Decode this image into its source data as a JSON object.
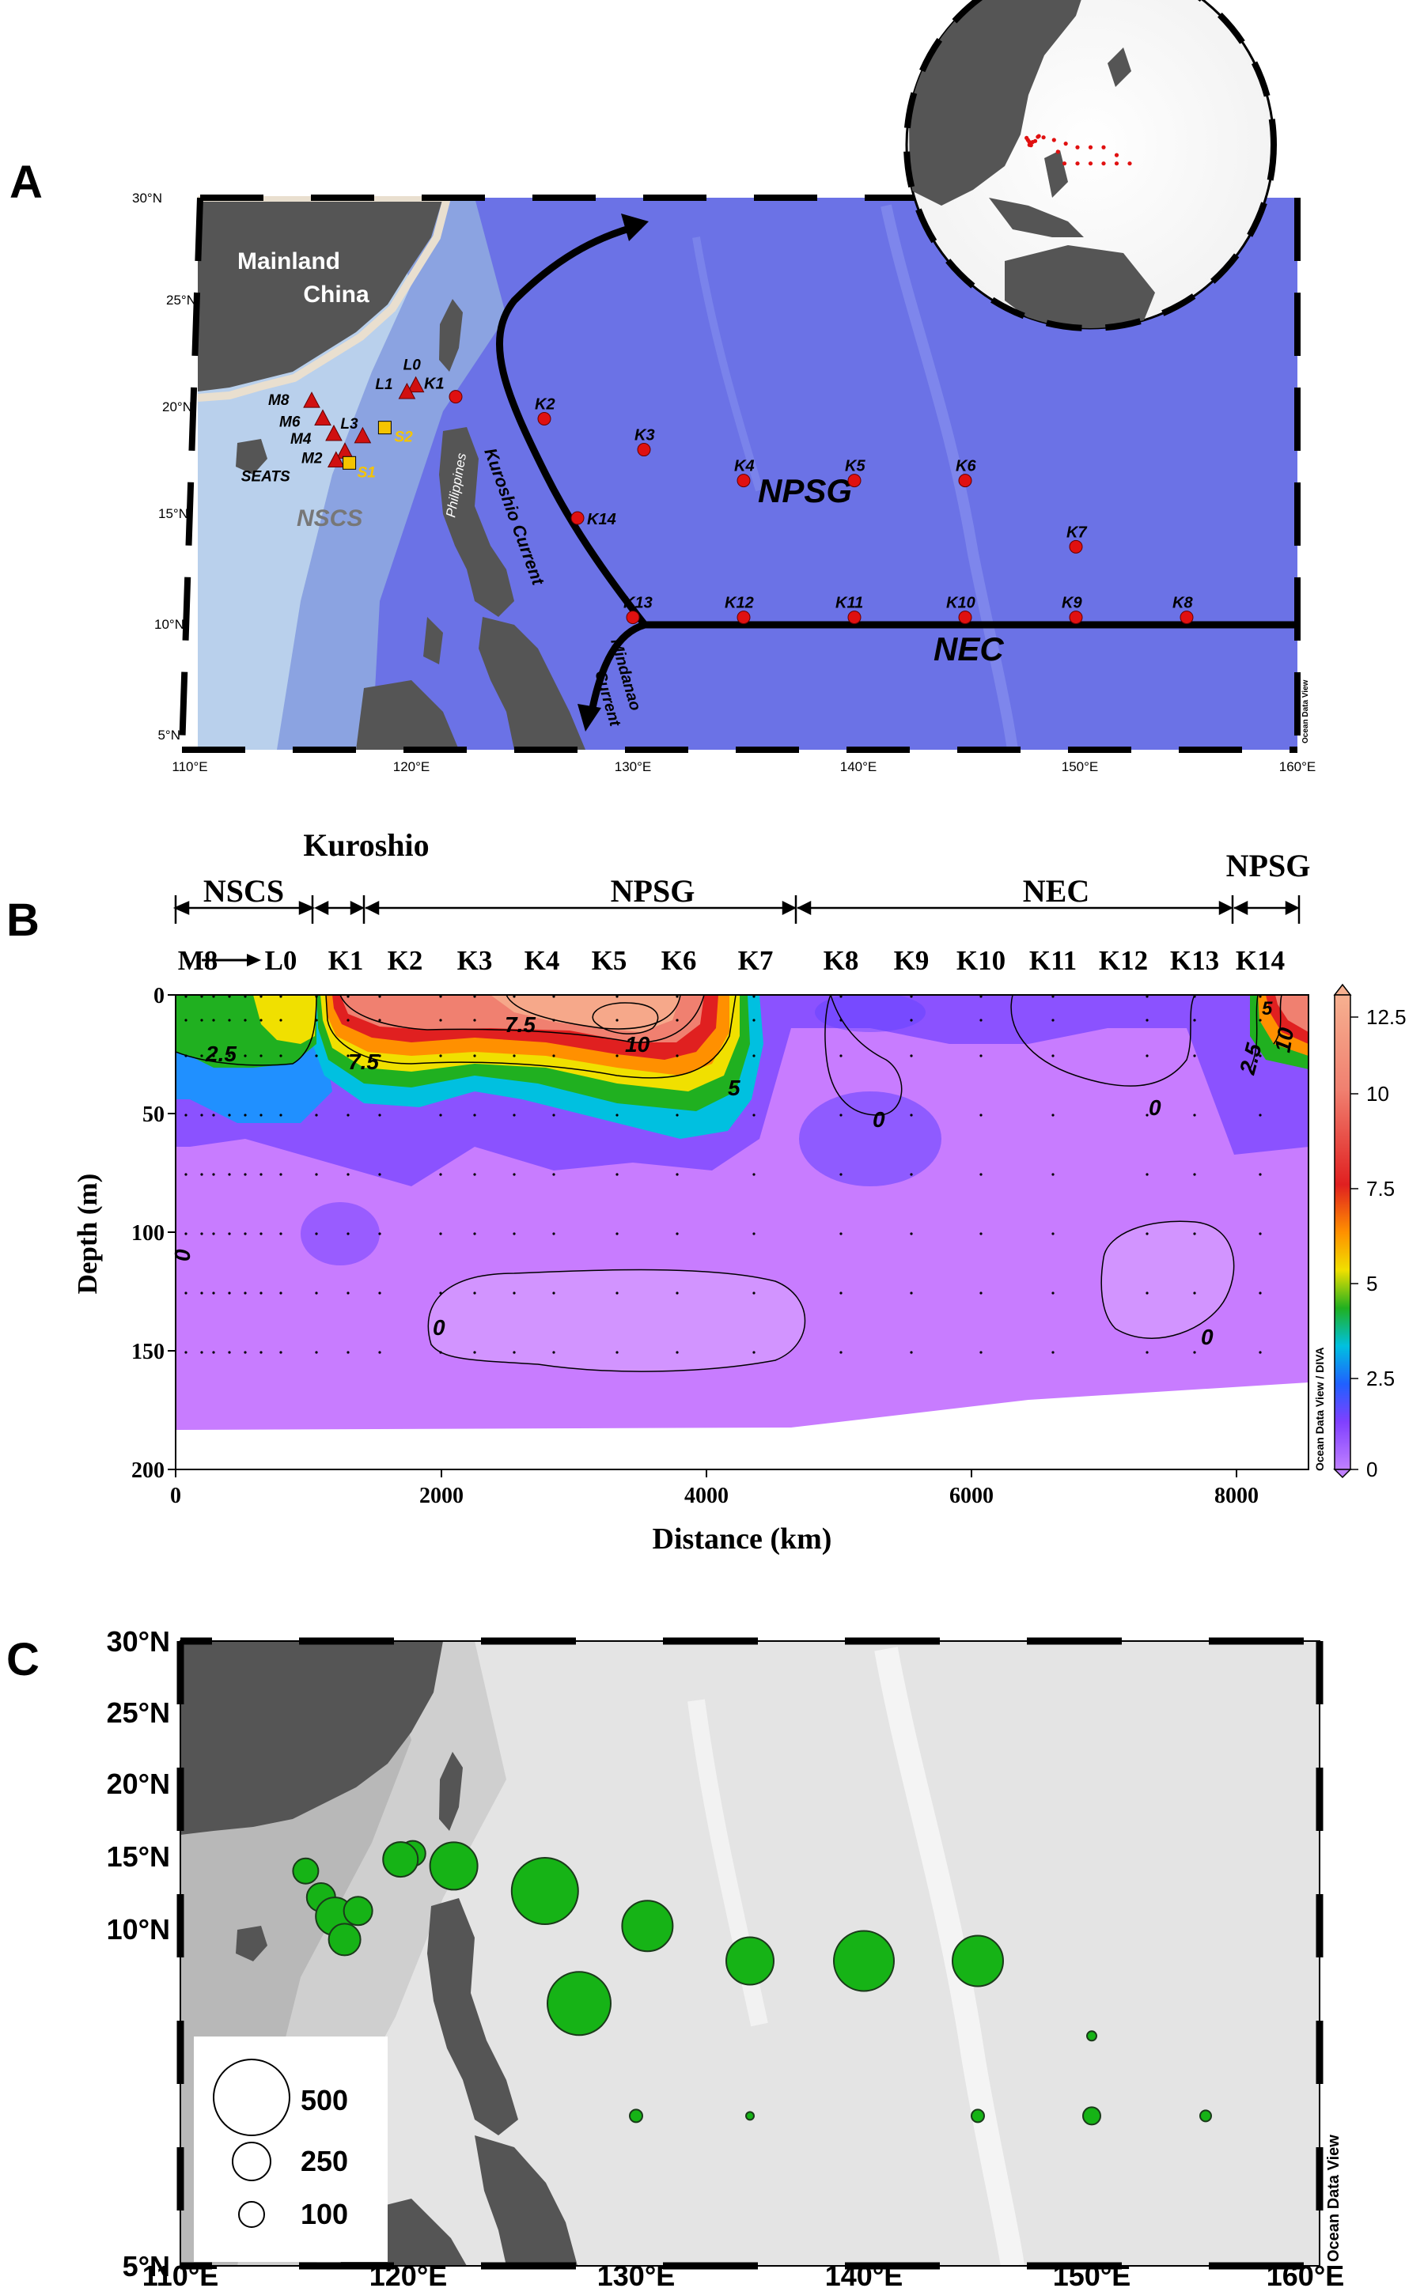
{
  "colors": {
    "ocean_deep": "#6b72e6",
    "ocean_shallow": "#a9c4e8",
    "land": "#555555",
    "land_shelf": "#e9dfcf",
    "station_k": "#e01010",
    "station_m": "#d01010",
    "station_s": "#f5c400",
    "bubble": "#16b316",
    "current_arrow": "#000000"
  },
  "panel_a": {
    "letter": "A",
    "lat_labels": [
      "30°N",
      "25°N",
      "20°N",
      "15°N",
      "10°N",
      "5°N"
    ],
    "lon_labels": [
      "110°E",
      "120°E",
      "130°E",
      "140°E",
      "150°E",
      "160°E"
    ],
    "region_labels": {
      "mainland": [
        "Mainland",
        "China"
      ],
      "nscs": "NSCS",
      "npsg": "NPSG",
      "nec": "NEC",
      "philippines": "Philippines",
      "kuroshio": "Kuroshio Current",
      "mindanao": [
        "Mindanao",
        "Current"
      ],
      "odv": "Ocean Data View"
    },
    "stations": [
      {
        "name": "K1",
        "lon": 122.0,
        "lat": 21.0,
        "type": "circle"
      },
      {
        "name": "K2",
        "lon": 126.0,
        "lat": 20.0,
        "type": "circle"
      },
      {
        "name": "K3",
        "lon": 130.5,
        "lat": 18.6,
        "type": "circle"
      },
      {
        "name": "K4",
        "lon": 135.0,
        "lat": 17.2,
        "type": "circle"
      },
      {
        "name": "K5",
        "lon": 140.0,
        "lat": 17.2,
        "type": "circle"
      },
      {
        "name": "K6",
        "lon": 145.0,
        "lat": 17.2,
        "type": "circle"
      },
      {
        "name": "K7",
        "lon": 150.0,
        "lat": 14.2,
        "type": "circle"
      },
      {
        "name": "K8",
        "lon": 155.0,
        "lat": 11.0,
        "type": "circle"
      },
      {
        "name": "K9",
        "lon": 150.0,
        "lat": 11.0,
        "type": "circle"
      },
      {
        "name": "K10",
        "lon": 145.0,
        "lat": 11.0,
        "type": "circle"
      },
      {
        "name": "K11",
        "lon": 140.0,
        "lat": 11.0,
        "type": "circle"
      },
      {
        "name": "K12",
        "lon": 135.0,
        "lat": 11.0,
        "type": "circle"
      },
      {
        "name": "K13",
        "lon": 130.0,
        "lat": 11.0,
        "type": "circle"
      },
      {
        "name": "K14",
        "lon": 127.5,
        "lat": 15.5,
        "type": "circle"
      },
      {
        "name": "L0",
        "lon": 120.2,
        "lat": 21.5,
        "type": "triangle"
      },
      {
        "name": "L1",
        "lon": 119.8,
        "lat": 21.2,
        "type": "triangle"
      },
      {
        "name": "M8",
        "lon": 115.5,
        "lat": 20.8,
        "type": "triangle"
      },
      {
        "name": "M6",
        "lon": 116.0,
        "lat": 20.0,
        "type": "triangle"
      },
      {
        "name": "M4",
        "lon": 116.5,
        "lat": 19.3,
        "type": "triangle"
      },
      {
        "name": "L3",
        "lon": 117.8,
        "lat": 19.2,
        "type": "triangle"
      },
      {
        "name": "M2",
        "lon": 117.0,
        "lat": 18.5,
        "type": "triangle"
      },
      {
        "name": "SEATS",
        "lon": 116.6,
        "lat": 18.1,
        "type": "triangle"
      },
      {
        "name": "S1",
        "lon": 117.2,
        "lat": 18.0,
        "type": "square"
      },
      {
        "name": "S2",
        "lon": 118.8,
        "lat": 19.6,
        "type": "square"
      }
    ]
  },
  "panel_b": {
    "letter": "B",
    "region_labels": [
      "NSCS",
      "Kuroshio",
      "NPSG",
      "NEC",
      "NPSG"
    ],
    "station_labels": [
      "M8",
      "L0",
      "K1",
      "K2",
      "K3",
      "K4",
      "K5",
      "K6",
      "K7",
      "K8",
      "K9",
      "K10",
      "K11",
      "K12",
      "K13",
      "K14"
    ],
    "ylabel": "Depth (m)",
    "xlabel": "Distance (km)",
    "xticks": [
      "0",
      "2000",
      "4000",
      "6000",
      "8000"
    ],
    "yticks": [
      "0",
      "50",
      "100",
      "150",
      "200"
    ],
    "colorbar_ticks": [
      "0",
      "2.5",
      "5",
      "7.5",
      "10",
      "12.5"
    ],
    "contour_labels": [
      "7.5",
      "10",
      "7.5",
      "5",
      "2.5",
      "0",
      "0",
      "0",
      "0",
      "0",
      "2.5",
      "5",
      "10"
    ],
    "odv": "Ocean Data View / DIVA"
  },
  "panel_c": {
    "letter": "C",
    "lat_labels": [
      "30°N",
      "25°N",
      "20°N",
      "15°N",
      "10°N",
      "5°N"
    ],
    "lon_labels": [
      "110°E",
      "120°E",
      "130°E",
      "140°E",
      "150°E",
      "160°E"
    ],
    "legend": [
      "500",
      "250",
      "100"
    ],
    "odv": "Ocean Data View"
  }
}
